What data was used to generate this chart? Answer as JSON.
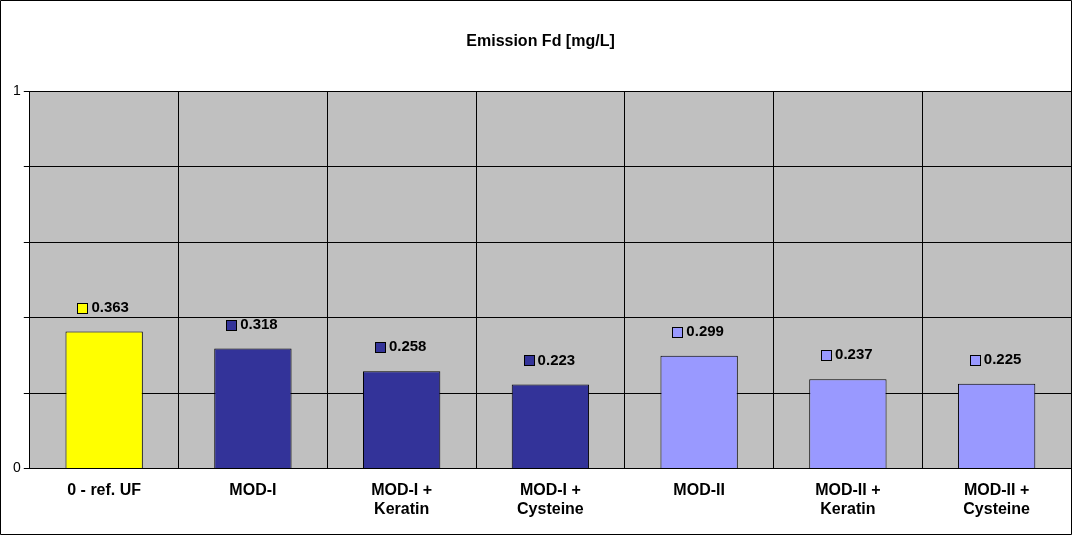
{
  "chart_data": {
    "type": "bar",
    "title": "Emission Fd [mg/L]",
    "categories": [
      "0 - ref. UF",
      "MOD-I",
      "MOD-I + Keratin",
      "MOD-I + Cysteine",
      "MOD-II",
      "MOD-II + Keratin",
      "MOD-II + Cysteine"
    ],
    "values": [
      0.363,
      0.318,
      0.258,
      0.223,
      0.299,
      0.237,
      0.225
    ],
    "colors": [
      "#ffff00",
      "#333399",
      "#333399",
      "#333399",
      "#9999ff",
      "#9999ff",
      "#9999ff"
    ],
    "ylim": [
      0,
      1
    ],
    "yticks": [
      0,
      {
        "value": 0.2,
        "label": null
      },
      {
        "value": 0.4,
        "label": null
      },
      {
        "value": 0.6,
        "label": null
      },
      {
        "value": 0.8,
        "label": null
      },
      1
    ],
    "grid": true,
    "data_labels": true,
    "legend": false
  }
}
